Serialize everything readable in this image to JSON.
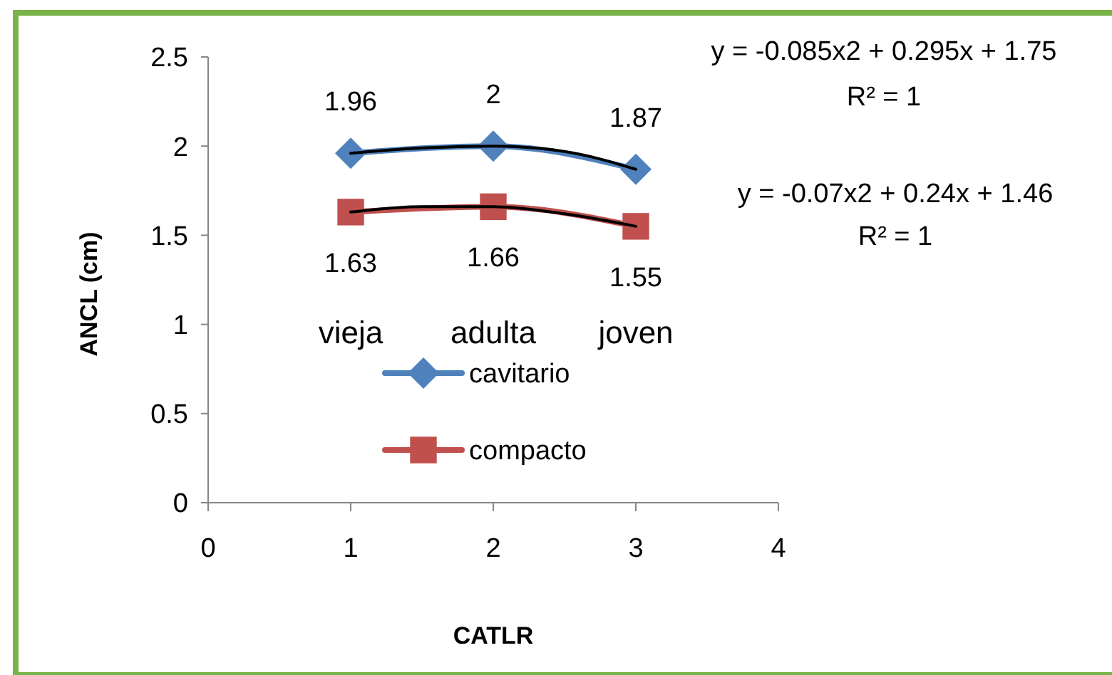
{
  "chart_data": {
    "type": "line",
    "xlabel": "CATLR",
    "ylabel": "ANCL (cm)",
    "x": [
      1,
      2,
      3
    ],
    "xlim": [
      0,
      4
    ],
    "xticks": [
      0,
      1,
      2,
      3,
      4
    ],
    "ylim": [
      0,
      2.5
    ],
    "yticks": [
      0,
      0.5,
      1,
      1.5,
      2,
      2.5
    ],
    "grid": false,
    "legend": "bottom",
    "data_labels": true,
    "series": [
      {
        "name": "cavitario",
        "color": "#4f81bd",
        "marker": "diamond",
        "values": [
          1.96,
          2,
          1.87
        ]
      },
      {
        "name": "compacto",
        "color": "#c0504d",
        "marker": "square",
        "values": [
          1.63,
          1.66,
          1.55
        ]
      },
      {
        "type": "line",
        "color": "#000000",
        "marker": "none",
        "x": [
          1,
          1.5,
          2,
          2.5,
          3
        ],
        "values": [
          1.96,
          1.99,
          2,
          1.97,
          1.87
        ],
        "value_labels": [
          null,
          null,
          null,
          null,
          null
        ]
      },
      {
        "type": "line",
        "color": "#000000",
        "marker": "none",
        "x": [
          1,
          1.5,
          2,
          2.5,
          3
        ],
        "values": [
          1.63,
          1.66,
          1.66,
          1.62,
          1.55
        ],
        "value_labels": [
          null,
          null,
          null,
          null,
          null
        ]
      }
    ],
    "annotations": [
      "vieja",
      "adulta",
      "joven",
      "y = -0.085x2 + 0.295x + 1.75",
      "R² = 1",
      "y = -0.07x2 + 0.24x + 1.46",
      "R² = 1"
    ]
  }
}
